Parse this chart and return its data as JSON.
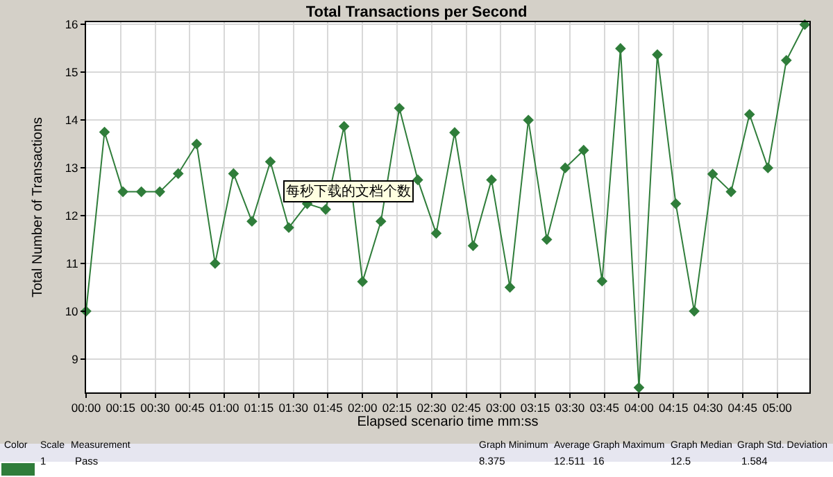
{
  "chart_data": {
    "type": "line",
    "title": "Total Transactions per Second",
    "xlabel": "Elapsed scenario time mm:ss",
    "ylabel": "Total Number of Transactions",
    "x": [
      0,
      8,
      16,
      24,
      32,
      40,
      48,
      56,
      64,
      72,
      80,
      88,
      96,
      104,
      112,
      120,
      128,
      136,
      144,
      152,
      160,
      168,
      176,
      184,
      192,
      200,
      208,
      216,
      224,
      232,
      240,
      248,
      256,
      264,
      272,
      280,
      288,
      296,
      304,
      312
    ],
    "series": [
      {
        "name": "Pass",
        "color": "#2f7d3a",
        "values": [
          10.0,
          13.75,
          12.5,
          12.5,
          12.5,
          12.88,
          13.5,
          11.0,
          12.88,
          11.88,
          13.13,
          11.75,
          12.25,
          12.13,
          13.87,
          10.62,
          11.88,
          14.25,
          12.75,
          11.63,
          13.74,
          11.37,
          12.75,
          10.5,
          14.0,
          11.5,
          13.0,
          13.37,
          10.63,
          15.5,
          8.4,
          15.37,
          12.25,
          10.0,
          12.87,
          12.5,
          14.12,
          13.0,
          15.25,
          16.0
        ]
      }
    ],
    "xlim": [
      0,
      314
    ],
    "xticks": [
      {
        "value": 0,
        "label": "00:00"
      },
      {
        "value": 15,
        "label": "00:15"
      },
      {
        "value": 30,
        "label": "00:30"
      },
      {
        "value": 45,
        "label": "00:45"
      },
      {
        "value": 60,
        "label": "01:00"
      },
      {
        "value": 75,
        "label": "01:15"
      },
      {
        "value": 90,
        "label": "01:30"
      },
      {
        "value": 105,
        "label": "01:45"
      },
      {
        "value": 120,
        "label": "02:00"
      },
      {
        "value": 135,
        "label": "02:15"
      },
      {
        "value": 150,
        "label": "02:30"
      },
      {
        "value": 165,
        "label": "02:45"
      },
      {
        "value": 180,
        "label": "03:00"
      },
      {
        "value": 195,
        "label": "03:15"
      },
      {
        "value": 210,
        "label": "03:30"
      },
      {
        "value": 225,
        "label": "03:45"
      },
      {
        "value": 240,
        "label": "04:00"
      },
      {
        "value": 255,
        "label": "04:15"
      },
      {
        "value": 270,
        "label": "04:30"
      },
      {
        "value": 285,
        "label": "04:45"
      },
      {
        "value": 300,
        "label": "05:00"
      }
    ],
    "ylim": [
      8.3,
      16.05
    ],
    "yticks": [
      9,
      10,
      11,
      12,
      13,
      14,
      15,
      16
    ],
    "grid": true,
    "legend": false,
    "marker": "diamond",
    "line_style": "solid",
    "annotations": [
      "每秒下载的文档个数",
      "Color",
      "Scale",
      "Measurement",
      "Graph Minimum",
      "Average",
      "Graph Maximum",
      "Graph Median",
      "Graph Std. Deviation",
      "1",
      "8.375",
      "12.511",
      "16",
      "12.5",
      "1.584"
    ]
  }
}
